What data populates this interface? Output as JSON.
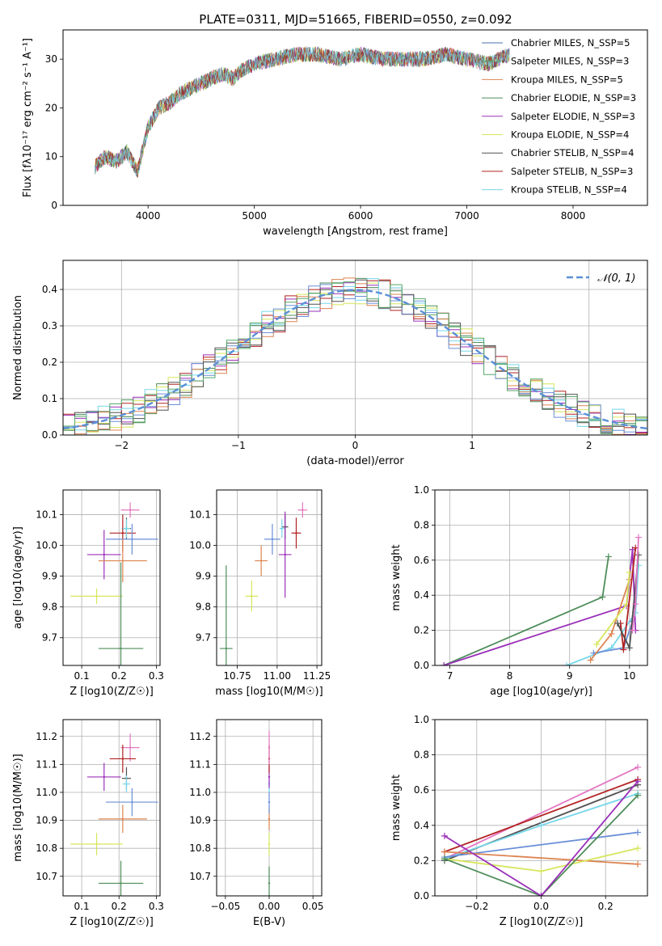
{
  "figure_title": "PLATE=0311, MJD=51665, FIBERID=0550, z=0.092",
  "chart_data": [
    {
      "id": "spectrum",
      "type": "line",
      "xlabel": "wavelength [Angstrom, rest frame]",
      "ylabel": "Flux [fλ10⁻¹⁷ erg cm⁻² s⁻¹ A⁻¹]",
      "xlim": [
        3200,
        8700
      ],
      "ylim": [
        0,
        36
      ],
      "xticks": [
        4000,
        5000,
        6000,
        7000,
        8000
      ],
      "yticks": [
        0,
        10,
        20,
        30
      ],
      "grid": false,
      "legend_position": "right",
      "x": [
        3500,
        3600,
        3700,
        3800,
        3900,
        4000,
        4100,
        4200,
        4300,
        4400,
        4500,
        4600,
        4700,
        4800,
        4900,
        5000,
        5200,
        5400,
        5600,
        5800,
        6000,
        6200,
        6400,
        6600,
        6800,
        7000,
        7200,
        7400
      ],
      "flux": [
        8,
        10,
        9,
        11,
        7,
        16,
        20,
        21,
        23,
        24,
        25,
        26,
        27,
        26,
        28,
        29,
        30,
        31,
        31,
        30,
        31,
        30,
        30,
        30,
        31,
        30,
        29,
        31
      ],
      "series": [
        {
          "name": "Chabrier MILES, N_SSP=5",
          "color": "#4c72b0"
        },
        {
          "name": "Salpeter MILES, N_SSP=3",
          "color": "#55a868"
        },
        {
          "name": "Kroupa MILES, N_SSP=5",
          "color": "#dd8452"
        },
        {
          "name": "Chabrier ELODIE, N_SSP=3",
          "color": "#4e8d5a"
        },
        {
          "name": "Salpeter ELODIE, N_SSP=3",
          "color": "#9b30b9"
        },
        {
          "name": "Kroupa ELODIE, N_SSP=4",
          "color": "#d6e65c"
        },
        {
          "name": "Chabrier STELIB, N_SSP=4",
          "color": "#505050"
        },
        {
          "name": "Salpeter STELIB, N_SSP=3",
          "color": "#b22222"
        },
        {
          "name": "Kroupa STELIB, N_SSP=4",
          "color": "#76d7ea"
        }
      ]
    },
    {
      "id": "residuals",
      "type": "line",
      "xlabel": "(data-model)/error",
      "ylabel": "Normed distribution",
      "xlim": [
        -2.5,
        2.5
      ],
      "ylim": [
        0,
        0.48
      ],
      "xticks": [
        -2,
        -1,
        0,
        1,
        2
      ],
      "yticks": [
        0.0,
        0.1,
        0.2,
        0.3,
        0.4
      ],
      "grid": true,
      "legend": "𝒩(0, 1)",
      "legend_position": "top-right"
    },
    {
      "id": "age-vs-Z",
      "type": "scatter",
      "xlabel": "Z [log10(Z/Z☉)]",
      "ylabel": "age  [log10(age/yr)]",
      "xlim": [
        0.05,
        0.31
      ],
      "ylim": [
        9.61,
        10.18
      ],
      "xticks": [
        0.1,
        0.2,
        0.3
      ],
      "yticks": [
        9.7,
        9.8,
        9.9,
        10.0,
        10.1
      ],
      "grid": true,
      "points": [
        {
          "x": 0.23,
          "y": 10.115,
          "xerr": 0.025,
          "yerr": 0.025,
          "color": "#e377c2"
        },
        {
          "x": 0.21,
          "y": 10.04,
          "xerr": 0.035,
          "yerr": 0.06,
          "color": "#b22222"
        },
        {
          "x": 0.22,
          "y": 10.055,
          "xerr": 0.012,
          "yerr": 0.035,
          "color": "#505050"
        },
        {
          "x": 0.22,
          "y": 10.055,
          "xerr": 0.01,
          "yerr": 0.03,
          "color": "#76d7ea"
        },
        {
          "x": 0.235,
          "y": 10.02,
          "xerr": 0.07,
          "yerr": 0.05,
          "color": "#6a8fd8"
        },
        {
          "x": 0.16,
          "y": 9.97,
          "xerr": 0.045,
          "yerr": 0.08,
          "color": "#9b30b9"
        },
        {
          "x": 0.21,
          "y": 9.95,
          "xerr": 0.065,
          "yerr": 0.07,
          "color": "#dd8452"
        },
        {
          "x": 0.14,
          "y": 9.835,
          "xerr": 0.07,
          "yerr": 0.025,
          "color": "#d6e65c"
        },
        {
          "x": 0.205,
          "y": 9.665,
          "xerr": 0.06,
          "yerr": 0.28,
          "color": "#4e8d5a"
        }
      ]
    },
    {
      "id": "age-vs-mass",
      "type": "scatter",
      "xlabel": "mass [log10(M/M☉)]",
      "ylabel": "",
      "xlim": [
        10.62,
        11.28
      ],
      "ylim": [
        9.61,
        10.18
      ],
      "xticks": [
        10.75,
        11.0,
        11.25
      ],
      "yticks": [
        9.7,
        9.8,
        9.9,
        10.0,
        10.1
      ],
      "grid": true,
      "points": [
        {
          "x": 11.16,
          "y": 10.115,
          "xerr": 0.03,
          "yerr": 0.025,
          "color": "#e377c2"
        },
        {
          "x": 11.12,
          "y": 10.04,
          "xerr": 0.03,
          "yerr": 0.05,
          "color": "#b22222"
        },
        {
          "x": 11.05,
          "y": 10.06,
          "xerr": 0.02,
          "yerr": 0.04,
          "color": "#505050"
        },
        {
          "x": 11.03,
          "y": 10.055,
          "xerr": 0.015,
          "yerr": 0.03,
          "color": "#76d7ea"
        },
        {
          "x": 10.97,
          "y": 10.02,
          "xerr": 0.05,
          "yerr": 0.05,
          "color": "#6a8fd8"
        },
        {
          "x": 11.05,
          "y": 9.97,
          "xerr": 0.04,
          "yerr": 0.14,
          "color": "#9b30b9"
        },
        {
          "x": 10.9,
          "y": 9.95,
          "xerr": 0.04,
          "yerr": 0.05,
          "color": "#dd8452"
        },
        {
          "x": 10.84,
          "y": 9.835,
          "xerr": 0.04,
          "yerr": 0.05,
          "color": "#d6e65c"
        },
        {
          "x": 10.68,
          "y": 9.665,
          "xerr": 0.04,
          "yerr": 0.27,
          "color": "#4e8d5a"
        }
      ]
    },
    {
      "id": "massweight-vs-age",
      "type": "line",
      "xlabel": "age  [log10(age/yr)]",
      "ylabel": "mass weight",
      "xlim": [
        6.75,
        10.3
      ],
      "ylim": [
        0,
        1.0
      ],
      "xticks": [
        7,
        8,
        9,
        10
      ],
      "yticks": [
        0.0,
        0.2,
        0.4,
        0.6,
        0.8,
        1.0
      ],
      "grid": true,
      "series": [
        {
          "color": "#4e8d5a",
          "x": [
            6.9,
            9.55,
            9.65
          ],
          "y": [
            0.0,
            0.39,
            0.62
          ]
        },
        {
          "color": "#9b30b9",
          "x": [
            6.9,
            9.95,
            10.05,
            10.1
          ],
          "y": [
            0.0,
            0.34,
            0.66,
            0.2
          ]
        },
        {
          "color": "#76d7ea",
          "x": [
            8.95,
            9.7,
            10.1,
            10.15
          ],
          "y": [
            0.0,
            0.1,
            0.3,
            0.57
          ]
        },
        {
          "color": "#6a8fd8",
          "x": [
            9.4,
            9.9,
            10.05
          ],
          "y": [
            0.07,
            0.1,
            0.25
          ]
        },
        {
          "color": "#dd8452",
          "x": [
            9.35,
            9.7,
            10.0
          ],
          "y": [
            0.03,
            0.18,
            0.49
          ]
        },
        {
          "color": "#d6e65c",
          "x": [
            9.45,
            9.95,
            10.0
          ],
          "y": [
            0.12,
            0.35,
            0.53
          ]
        },
        {
          "color": "#b22222",
          "x": [
            9.85,
            9.9,
            10.1
          ],
          "y": [
            0.24,
            0.09,
            0.67
          ]
        },
        {
          "color": "#505050",
          "x": [
            9.8,
            10.0,
            10.15
          ],
          "y": [
            0.24,
            0.1,
            0.63
          ]
        },
        {
          "color": "#e377c2",
          "x": [
            10.05,
            10.1,
            10.15
          ],
          "y": [
            0.2,
            0.35,
            0.73
          ]
        }
      ]
    },
    {
      "id": "mass-vs-Z",
      "type": "scatter",
      "xlabel": "Z [log10(Z/Z☉)]",
      "ylabel": "mass [log10(M/M☉)]",
      "xlim": [
        0.05,
        0.31
      ],
      "ylim": [
        10.63,
        11.26
      ],
      "xticks": [
        0.1,
        0.2,
        0.3
      ],
      "yticks": [
        10.7,
        10.8,
        10.9,
        11.0,
        11.1,
        11.2
      ],
      "grid": true,
      "points": [
        {
          "x": 0.23,
          "y": 11.16,
          "xerr": 0.025,
          "yerr": 0.05,
          "color": "#e377c2"
        },
        {
          "x": 0.21,
          "y": 11.12,
          "xerr": 0.035,
          "yerr": 0.05,
          "color": "#b22222"
        },
        {
          "x": 0.22,
          "y": 11.05,
          "xerr": 0.012,
          "yerr": 0.04,
          "color": "#505050"
        },
        {
          "x": 0.22,
          "y": 11.03,
          "xerr": 0.01,
          "yerr": 0.03,
          "color": "#76d7ea"
        },
        {
          "x": 0.235,
          "y": 10.965,
          "xerr": 0.07,
          "yerr": 0.05,
          "color": "#6a8fd8"
        },
        {
          "x": 0.16,
          "y": 11.055,
          "xerr": 0.045,
          "yerr": 0.05,
          "color": "#9b30b9"
        },
        {
          "x": 0.21,
          "y": 10.905,
          "xerr": 0.065,
          "yerr": 0.05,
          "color": "#dd8452"
        },
        {
          "x": 0.14,
          "y": 10.815,
          "xerr": 0.07,
          "yerr": 0.04,
          "color": "#d6e65c"
        },
        {
          "x": 0.205,
          "y": 10.675,
          "xerr": 0.06,
          "yerr": 0.08,
          "color": "#4e8d5a"
        }
      ]
    },
    {
      "id": "mass-vs-ebv",
      "type": "scatter",
      "xlabel": "E(B-V)",
      "ylabel": "",
      "xlim": [
        -0.06,
        0.06
      ],
      "ylim": [
        10.63,
        11.26
      ],
      "xticks": [
        -0.05,
        0.0,
        0.05
      ],
      "yticks": [
        10.7,
        10.8,
        10.9,
        11.0,
        11.1,
        11.2
      ],
      "grid": true,
      "points": [
        {
          "x": 0.0,
          "y": 10.675,
          "yerr": 0.06,
          "color": "#4e8d5a"
        },
        {
          "x": 0.0,
          "y": 10.815,
          "yerr": 0.04,
          "color": "#d6e65c"
        },
        {
          "x": 0.0,
          "y": 10.905,
          "yerr": 0.04,
          "color": "#dd8452"
        },
        {
          "x": 0.0,
          "y": 10.965,
          "yerr": 0.04,
          "color": "#6a8fd8"
        },
        {
          "x": 0.0,
          "y": 11.03,
          "yerr": 0.03,
          "color": "#76d7ea"
        },
        {
          "x": 0.0,
          "y": 11.055,
          "yerr": 0.04,
          "color": "#9b30b9"
        },
        {
          "x": 0.0,
          "y": 11.12,
          "yerr": 0.05,
          "color": "#b22222"
        },
        {
          "x": 0.0,
          "y": 11.16,
          "yerr": 0.06,
          "color": "#e377c2"
        }
      ]
    },
    {
      "id": "massweight-vs-Z",
      "type": "line",
      "xlabel": "Z [log10(Z/Z☉)]",
      "ylabel": "mass weight",
      "xlim": [
        -0.33,
        0.33
      ],
      "ylim": [
        0,
        1.0
      ],
      "xticks": [
        -0.2,
        0.0,
        0.2
      ],
      "yticks": [
        0.0,
        0.2,
        0.4,
        0.6,
        0.8,
        1.0
      ],
      "grid": true,
      "series": [
        {
          "color": "#e377c2",
          "x": [
            -0.3,
            0.3
          ],
          "y": [
            0.21,
            0.73
          ]
        },
        {
          "color": "#b22222",
          "x": [
            -0.3,
            0.3
          ],
          "y": [
            0.25,
            0.66
          ]
        },
        {
          "color": "#505050",
          "x": [
            -0.3,
            0.3
          ],
          "y": [
            0.2,
            0.63
          ]
        },
        {
          "color": "#76d7ea",
          "x": [
            -0.3,
            0.0,
            0.3
          ],
          "y": [
            0.21,
            0.4,
            0.58
          ]
        },
        {
          "color": "#6a8fd8",
          "x": [
            -0.3,
            0.3
          ],
          "y": [
            0.22,
            0.36
          ]
        },
        {
          "color": "#dd8452",
          "x": [
            -0.3,
            0.3
          ],
          "y": [
            0.25,
            0.18
          ]
        },
        {
          "color": "#d6e65c",
          "x": [
            -0.3,
            0.0,
            0.3
          ],
          "y": [
            0.21,
            0.14,
            0.27
          ]
        },
        {
          "color": "#4e8d5a",
          "x": [
            -0.3,
            0.0,
            0.3
          ],
          "y": [
            0.21,
            0.0,
            0.57
          ]
        },
        {
          "color": "#9b30b9",
          "x": [
            -0.3,
            0.0,
            0.3
          ],
          "y": [
            0.34,
            0.0,
            0.65
          ]
        }
      ]
    }
  ]
}
